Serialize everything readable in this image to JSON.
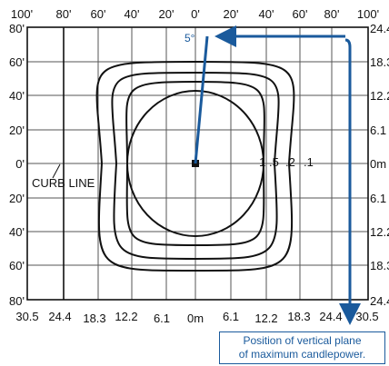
{
  "diagram": {
    "top_feet_labels": [
      "100'",
      "80'",
      "60'",
      "40'",
      "20'",
      "0'",
      "20'",
      "40'",
      "60'",
      "80'",
      "100'"
    ],
    "left_feet_labels": [
      "80'",
      "60'",
      "40'",
      "20'",
      "0'",
      "20'",
      "40'",
      "60'",
      "80'"
    ],
    "bottom_meter_labels": [
      "30.5",
      "24.4",
      "18.3",
      "12.2",
      "6.1",
      "0m",
      "6.1",
      "12.2",
      "18.3",
      "24.4",
      "30.5"
    ],
    "right_meter_labels": [
      "24.4",
      "18.3",
      "12.2",
      "6.1",
      "0m",
      "6.1",
      "12.2",
      "18.3",
      "24.4"
    ],
    "contour_labels": [
      "1",
      ".5",
      ".2",
      ".1"
    ],
    "curb_line_label": "CURB LINE",
    "angle_label": "5°",
    "note_lines": [
      "Position of vertical plane",
      "of maximum candlepower."
    ],
    "colors": {
      "accent": "#1a5a9c",
      "line": "#111111",
      "grid": "#555555"
    }
  }
}
